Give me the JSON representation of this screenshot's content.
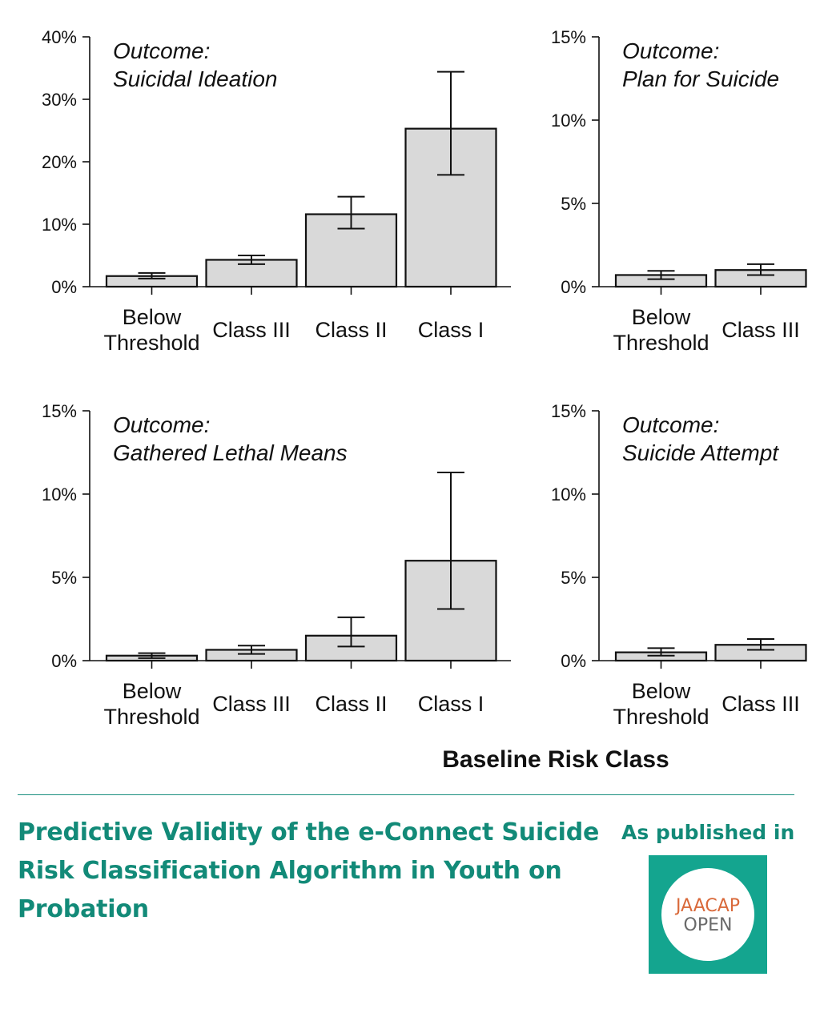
{
  "chart_data": [
    {
      "type": "bar",
      "title": "Outcome:",
      "subtitle": "Suicidal Ideation",
      "categories": [
        "Below Threshold",
        "Class III",
        "Class II",
        "Class I"
      ],
      "values": [
        1.7,
        4.3,
        11.6,
        25.3
      ],
      "error_low": [
        1.3,
        3.6,
        9.3,
        17.9
      ],
      "error_high": [
        2.2,
        5.0,
        14.4,
        34.4
      ],
      "ylim": [
        0,
        40
      ],
      "yticks": [
        "0%",
        "10%",
        "20%",
        "30%",
        "40%"
      ]
    },
    {
      "type": "bar",
      "title": "Outcome:",
      "subtitle": "Plan for Suicide",
      "categories": [
        "Below Threshold",
        "Class III"
      ],
      "values": [
        0.7,
        1.0
      ],
      "error_low": [
        0.45,
        0.7
      ],
      "error_high": [
        0.95,
        1.35
      ],
      "ylim": [
        0,
        15
      ],
      "yticks": [
        "0%",
        "5%",
        "10%",
        "15%"
      ]
    },
    {
      "type": "bar",
      "title": "Outcome:",
      "subtitle": "Gathered Lethal Means",
      "categories": [
        "Below Threshold",
        "Class III",
        "Class II",
        "Class I"
      ],
      "values": [
        0.3,
        0.65,
        1.5,
        6.0
      ],
      "error_low": [
        0.15,
        0.4,
        0.85,
        3.1
      ],
      "error_high": [
        0.45,
        0.9,
        2.6,
        11.3
      ],
      "ylim": [
        0,
        15
      ],
      "yticks": [
        "0%",
        "5%",
        "10%",
        "15%"
      ]
    },
    {
      "type": "bar",
      "title": "Outcome:",
      "subtitle": "Suicide Attempt",
      "categories": [
        "Below Threshold",
        "Class III"
      ],
      "values": [
        0.5,
        0.95
      ],
      "error_low": [
        0.3,
        0.65
      ],
      "error_high": [
        0.75,
        1.3
      ],
      "ylim": [
        0,
        15
      ],
      "yticks": [
        "0%",
        "5%",
        "10%",
        "15%"
      ]
    }
  ],
  "xlabel": "Baseline Risk Class",
  "footer": {
    "title": "Predictive Validity of the e-Connect Suicide Risk Classification Algorithm in Youth on Probation",
    "published_label": "As published in",
    "logo_top": "JAACAP",
    "logo_bottom": "OPEN"
  },
  "colors": {
    "bar_fill": "#d9d9d9",
    "bar_stroke": "#111111",
    "accent": "#128a78",
    "logo_bg": "#14a58f",
    "logo_orange": "#d9693a"
  }
}
